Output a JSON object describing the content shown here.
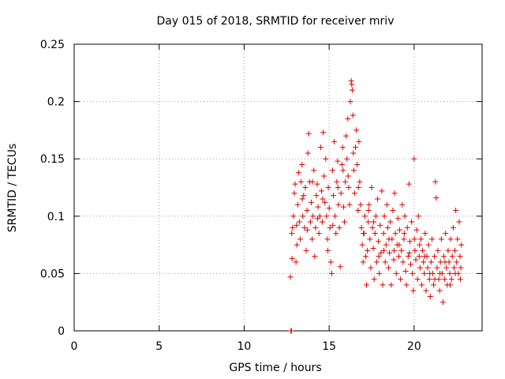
{
  "chart_data": {
    "type": "scatter",
    "title": "Day 015 of 2018, SRMTID for receiver mriv",
    "xlabel": "GPS time / hours",
    "ylabel": "SRMTID / TECUs",
    "xlim": [
      0,
      24
    ],
    "ylim": [
      0,
      0.25
    ],
    "xticks": [
      "0",
      "5",
      "10",
      "15",
      "20"
    ],
    "xtick_values": [
      0,
      5,
      10,
      15,
      20
    ],
    "yticks": [
      "0",
      "0.05",
      "0.1",
      "0.15",
      "0.2",
      "0.25"
    ],
    "ytick_values": [
      0,
      0.05,
      0.1,
      0.15,
      0.2,
      0.25
    ],
    "grid": true,
    "marker": "plus",
    "color": "#e00000",
    "series": [
      {
        "name": "SRMTID",
        "points": [
          [
            12.75,
            0.0
          ],
          [
            12.78,
            0.0
          ],
          [
            12.72,
            0.047
          ],
          [
            12.8,
            0.085
          ],
          [
            12.85,
            0.09
          ],
          [
            12.9,
            0.1
          ],
          [
            12.95,
            0.12
          ],
          [
            13.0,
            0.128
          ],
          [
            13.05,
            0.06
          ],
          [
            13.1,
            0.075
          ],
          [
            13.15,
            0.11
          ],
          [
            13.2,
            0.138
          ],
          [
            13.25,
            0.095
          ],
          [
            13.3,
            0.08
          ],
          [
            13.35,
            0.13
          ],
          [
            13.4,
            0.145
          ],
          [
            13.45,
            0.1
          ],
          [
            13.5,
            0.118
          ],
          [
            13.55,
            0.09
          ],
          [
            13.6,
            0.125
          ],
          [
            13.65,
            0.07
          ],
          [
            13.7,
            0.105
          ],
          [
            13.75,
            0.155
          ],
          [
            13.8,
            0.172
          ],
          [
            13.85,
            0.13
          ],
          [
            13.9,
            0.095
          ],
          [
            13.95,
            0.112
          ],
          [
            14.0,
            0.08
          ],
          [
            14.05,
            0.1
          ],
          [
            14.1,
            0.14
          ],
          [
            14.15,
            0.065
          ],
          [
            14.2,
            0.09
          ],
          [
            14.25,
            0.118
          ],
          [
            14.3,
            0.128
          ],
          [
            14.35,
            0.108
          ],
          [
            14.4,
            0.085
          ],
          [
            14.45,
            0.1
          ],
          [
            14.5,
            0.16
          ],
          [
            14.55,
            0.122
          ],
          [
            14.6,
            0.095
          ],
          [
            14.65,
            0.173
          ],
          [
            14.7,
            0.135
          ],
          [
            14.75,
            0.112
          ],
          [
            14.8,
            0.15
          ],
          [
            14.85,
            0.1
          ],
          [
            14.9,
            0.08
          ],
          [
            14.95,
            0.125
          ],
          [
            15.0,
            0.107
          ],
          [
            15.05,
            0.09
          ],
          [
            15.1,
            0.06
          ],
          [
            15.15,
            0.05
          ],
          [
            15.2,
            0.14
          ],
          [
            15.25,
            0.118
          ],
          [
            15.3,
            0.165
          ],
          [
            15.35,
            0.1
          ],
          [
            15.4,
            0.085
          ],
          [
            15.45,
            0.13
          ],
          [
            15.5,
            0.148
          ],
          [
            15.55,
            0.11
          ],
          [
            15.6,
            0.09
          ],
          [
            15.65,
            0.056
          ],
          [
            15.7,
            0.12
          ],
          [
            15.75,
            0.145
          ],
          [
            15.8,
            0.16
          ],
          [
            15.85,
            0.108
          ],
          [
            15.9,
            0.095
          ],
          [
            15.95,
            0.13
          ],
          [
            16.0,
            0.17
          ],
          [
            16.05,
            0.15
          ],
          [
            16.1,
            0.185
          ],
          [
            16.15,
            0.125
          ],
          [
            16.2,
            0.11
          ],
          [
            16.25,
            0.2
          ],
          [
            16.3,
            0.218
          ],
          [
            16.33,
            0.215
          ],
          [
            16.36,
            0.21
          ],
          [
            16.4,
            0.188
          ],
          [
            16.45,
            0.14
          ],
          [
            16.5,
            0.12
          ],
          [
            16.55,
            0.16
          ],
          [
            16.6,
            0.175
          ],
          [
            16.65,
            0.145
          ],
          [
            16.7,
            0.105
          ],
          [
            16.75,
            0.165
          ],
          [
            16.8,
            0.13
          ],
          [
            16.85,
            0.11
          ],
          [
            16.9,
            0.09
          ],
          [
            16.95,
            0.075
          ],
          [
            17.0,
            0.06
          ],
          [
            17.05,
            0.085
          ],
          [
            17.1,
            0.1
          ],
          [
            17.15,
            0.065
          ],
          [
            17.2,
            0.04
          ],
          [
            17.25,
            0.07
          ],
          [
            17.3,
            0.095
          ],
          [
            17.35,
            0.11
          ],
          [
            17.4,
            0.08
          ],
          [
            17.45,
            0.055
          ],
          [
            17.5,
            0.125
          ],
          [
            17.55,
            0.09
          ],
          [
            17.6,
            0.072
          ],
          [
            17.65,
            0.045
          ],
          [
            17.7,
            0.085
          ],
          [
            17.75,
            0.1
          ],
          [
            17.8,
            0.06
          ],
          [
            17.85,
            0.115
          ],
          [
            17.9,
            0.078
          ],
          [
            17.95,
            0.05
          ],
          [
            18.0,
            0.092
          ],
          [
            18.05,
            0.068
          ],
          [
            18.1,
            0.122
          ],
          [
            18.15,
            0.04
          ],
          [
            18.2,
            0.085
          ],
          [
            18.25,
            0.1
          ],
          [
            18.3,
            0.06
          ],
          [
            18.35,
            0.075
          ],
          [
            18.4,
            0.11
          ],
          [
            18.45,
            0.09
          ],
          [
            18.5,
            0.055
          ],
          [
            18.55,
            0.068
          ],
          [
            18.6,
            0.095
          ],
          [
            18.65,
            0.04
          ],
          [
            18.7,
            0.08
          ],
          [
            18.75,
            0.105
          ],
          [
            18.8,
            0.062
          ],
          [
            18.85,
            0.12
          ],
          [
            18.9,
            0.085
          ],
          [
            18.95,
            0.05
          ],
          [
            19.0,
            0.075
          ],
          [
            19.05,
            0.098
          ],
          [
            19.1,
            0.065
          ],
          [
            19.15,
            0.088
          ],
          [
            19.2,
            0.045
          ],
          [
            19.25,
            0.07
          ],
          [
            19.3,
            0.11
          ],
          [
            19.35,
            0.06
          ],
          [
            19.4,
            0.08
          ],
          [
            19.45,
            0.1
          ],
          [
            19.5,
            0.052
          ],
          [
            19.55,
            0.04
          ],
          [
            19.6,
            0.09
          ],
          [
            19.65,
            0.065
          ],
          [
            19.7,
            0.128
          ],
          [
            19.75,
            0.078
          ],
          [
            19.8,
            0.058
          ],
          [
            19.85,
            0.095
          ],
          [
            19.9,
            0.05
          ],
          [
            19.95,
            0.035
          ],
          [
            20.0,
            0.15
          ],
          [
            20.05,
            0.07
          ],
          [
            20.1,
            0.062
          ],
          [
            20.15,
            0.088
          ],
          [
            20.2,
            0.045
          ],
          [
            20.25,
            0.1
          ],
          [
            20.3,
            0.065
          ],
          [
            20.35,
            0.055
          ],
          [
            20.4,
            0.08
          ],
          [
            20.45,
            0.04
          ],
          [
            20.5,
            0.07
          ],
          [
            20.55,
            0.06
          ],
          [
            20.6,
            0.05
          ],
          [
            20.65,
            0.085
          ],
          [
            20.7,
            0.035
          ],
          [
            20.75,
            0.065
          ],
          [
            20.8,
            0.055
          ],
          [
            20.85,
            0.075
          ],
          [
            20.9,
            0.045
          ],
          [
            20.95,
            0.03
          ],
          [
            21.0,
            0.06
          ],
          [
            21.05,
            0.08
          ],
          [
            21.1,
            0.05
          ],
          [
            21.15,
            0.04
          ],
          [
            21.2,
            0.065
          ],
          [
            21.25,
            0.13
          ],
          [
            21.3,
            0.116
          ],
          [
            21.35,
            0.055
          ],
          [
            21.4,
            0.07
          ],
          [
            21.45,
            0.045
          ],
          [
            21.5,
            0.035
          ],
          [
            21.55,
            0.06
          ],
          [
            21.6,
            0.08
          ],
          [
            21.65,
            0.05
          ],
          [
            21.7,
            0.025
          ],
          [
            21.75,
            0.065
          ],
          [
            21.8,
            0.045
          ],
          [
            21.85,
            0.085
          ],
          [
            21.9,
            0.055
          ],
          [
            21.95,
            0.04
          ],
          [
            22.0,
            0.07
          ],
          [
            22.05,
            0.06
          ],
          [
            22.1,
            0.05
          ],
          [
            22.15,
            0.08
          ],
          [
            22.2,
            0.045
          ],
          [
            22.25,
            0.065
          ],
          [
            22.3,
            0.09
          ],
          [
            22.35,
            0.055
          ],
          [
            22.4,
            0.07
          ],
          [
            22.45,
            0.105
          ],
          [
            22.5,
            0.06
          ],
          [
            22.55,
            0.08
          ],
          [
            22.6,
            0.05
          ],
          [
            22.65,
            0.095
          ],
          [
            22.7,
            0.065
          ],
          [
            22.75,
            0.055
          ],
          [
            22.78,
            0.075
          ],
          [
            12.82,
            0.063
          ],
          [
            13.08,
            0.092
          ],
          [
            13.42,
            0.115
          ],
          [
            13.72,
            0.088
          ],
          [
            14.02,
            0.13
          ],
          [
            14.32,
            0.098
          ],
          [
            14.62,
            0.115
          ],
          [
            14.92,
            0.07
          ],
          [
            15.22,
            0.092
          ],
          [
            15.52,
            0.125
          ],
          [
            15.82,
            0.14
          ],
          [
            16.12,
            0.135
          ],
          [
            16.42,
            0.155
          ],
          [
            16.72,
            0.125
          ],
          [
            17.02,
            0.085
          ],
          [
            17.32,
            0.105
          ],
          [
            17.62,
            0.095
          ],
          [
            17.92,
            0.065
          ],
          [
            18.22,
            0.07
          ],
          [
            18.52,
            0.08
          ],
          [
            18.82,
            0.07
          ],
          [
            19.12,
            0.075
          ],
          [
            19.42,
            0.085
          ],
          [
            19.72,
            0.068
          ],
          [
            20.02,
            0.08
          ],
          [
            20.32,
            0.075
          ],
          [
            20.62,
            0.065
          ],
          [
            20.92,
            0.05
          ],
          [
            21.22,
            0.045
          ],
          [
            21.52,
            0.05
          ],
          [
            21.82,
            0.06
          ],
          [
            22.12,
            0.04
          ],
          [
            22.42,
            0.05
          ],
          [
            22.72,
            0.045
          ]
        ]
      }
    ]
  }
}
